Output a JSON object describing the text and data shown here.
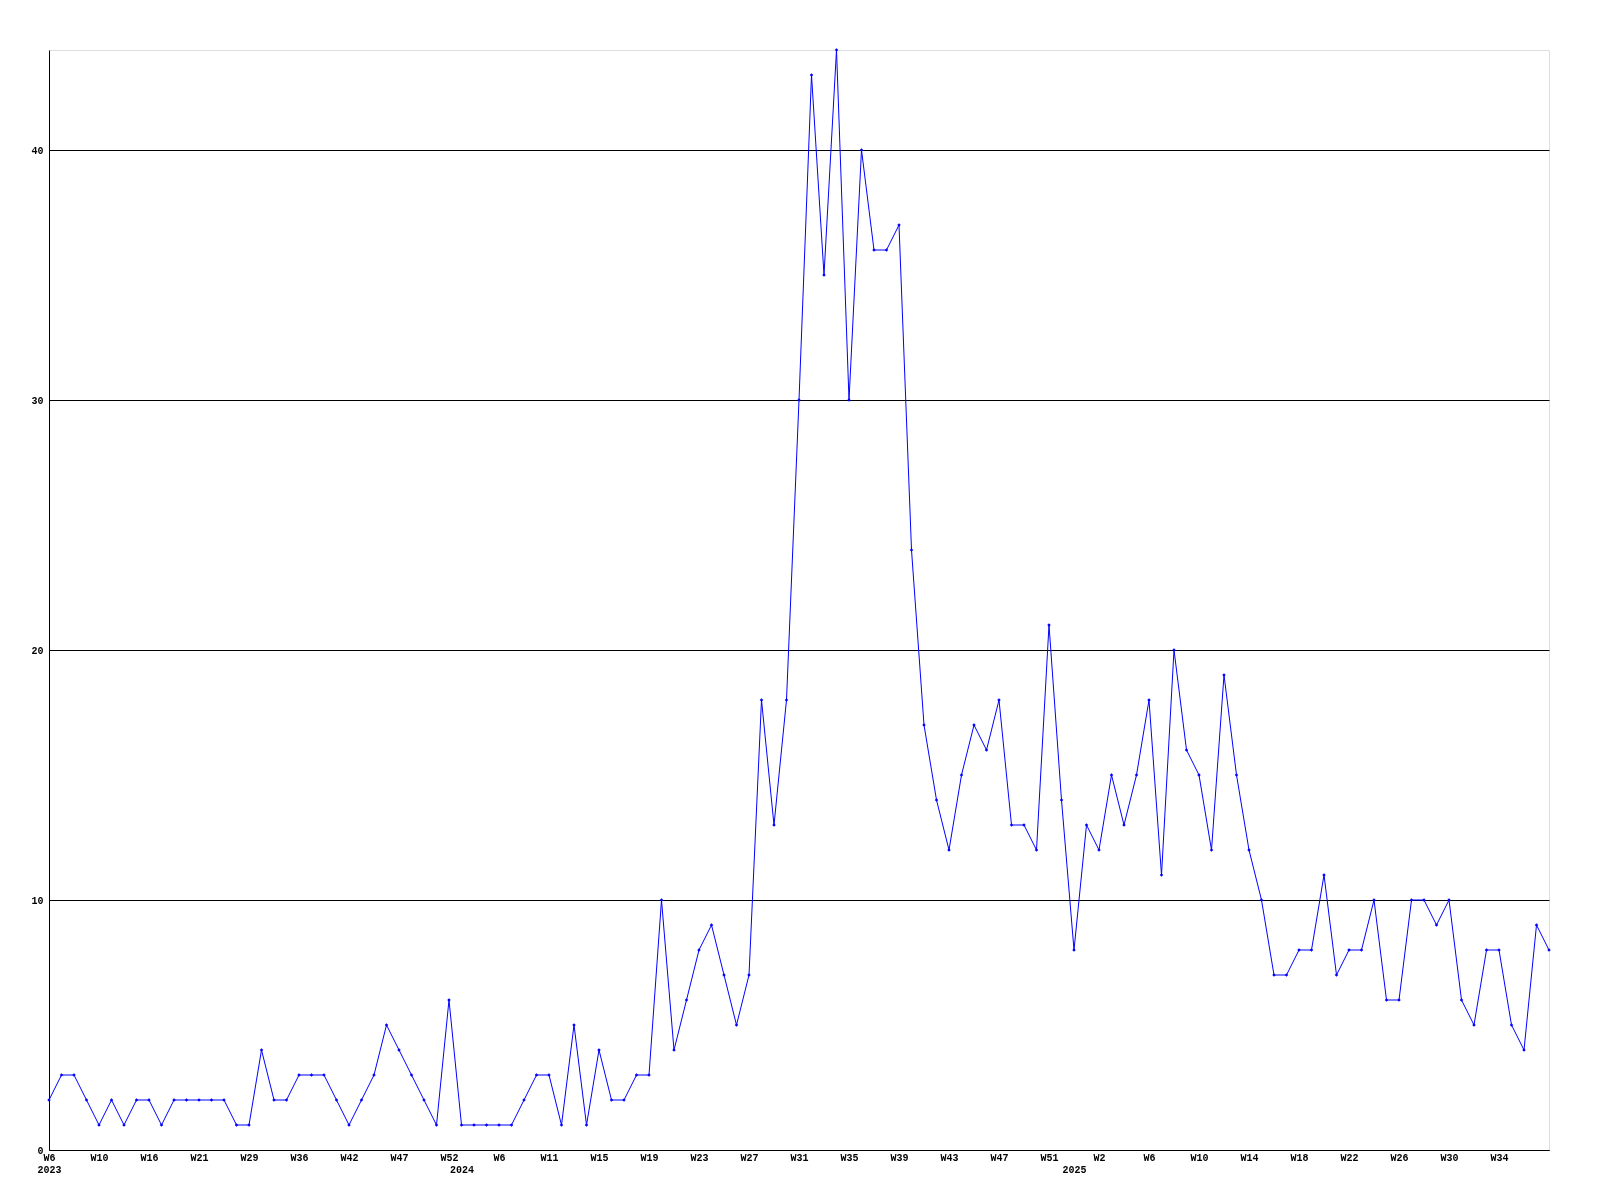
{
  "chart_data": {
    "type": "line",
    "categories": [
      "W6\n2023",
      null,
      null,
      null,
      "W10",
      null,
      null,
      null,
      "W16",
      null,
      null,
      null,
      "W21",
      null,
      null,
      null,
      "W29",
      null,
      null,
      null,
      "W36",
      null,
      null,
      null,
      "W42",
      null,
      null,
      null,
      "W47",
      null,
      null,
      null,
      "W52",
      "\n2024",
      null,
      null,
      "W6",
      null,
      null,
      null,
      "W11",
      null,
      null,
      null,
      "W15",
      null,
      null,
      null,
      "W19",
      null,
      null,
      null,
      "W23",
      null,
      null,
      null,
      "W27",
      null,
      null,
      null,
      "W31",
      null,
      null,
      null,
      "W35",
      null,
      null,
      null,
      "W39",
      null,
      null,
      null,
      "W43",
      null,
      null,
      null,
      "W47",
      null,
      null,
      null,
      "W51",
      null,
      "\n2025",
      null,
      "W2",
      null,
      null,
      null,
      "W6",
      null,
      null,
      null,
      "W10",
      null,
      null,
      null,
      "W14",
      null,
      null,
      null,
      "W18",
      null,
      null,
      null,
      "W22",
      null,
      null,
      null,
      "W26",
      null,
      null,
      null,
      "W30",
      null,
      null,
      null,
      "W34",
      null,
      null,
      null,
      null
    ],
    "series": [
      {
        "color": "#0000ff",
        "values": [
          2,
          3,
          3,
          2,
          1,
          2,
          1,
          2,
          2,
          1,
          2,
          2,
          2,
          2,
          2,
          1,
          1,
          4,
          2,
          2,
          3,
          3,
          3,
          2,
          1,
          2,
          3,
          5,
          4,
          3,
          2,
          1,
          6,
          1,
          1,
          1,
          1,
          1,
          2,
          3,
          3,
          1,
          5,
          1,
          4,
          2,
          2,
          3,
          3,
          10,
          4,
          6,
          8,
          9,
          7,
          5,
          7,
          18,
          13,
          18,
          30,
          43,
          35,
          44,
          30,
          40,
          36,
          36,
          37,
          24,
          17,
          14,
          12,
          15,
          17,
          16,
          18,
          13,
          13,
          12,
          21,
          14,
          8,
          13,
          12,
          15,
          13,
          15,
          18,
          11,
          20,
          16,
          15,
          12,
          19,
          15,
          12,
          10,
          7,
          7,
          8,
          8,
          11,
          7,
          8,
          8,
          10,
          6,
          6,
          10,
          10,
          9,
          10,
          6,
          5,
          8,
          8,
          5,
          4,
          9,
          8
        ]
      }
    ],
    "ylim": [
      0,
      44
    ],
    "yticks": [
      0,
      10,
      20,
      30,
      40
    ],
    "grid": "y",
    "marker": "diamond",
    "line_style": "solid"
  }
}
